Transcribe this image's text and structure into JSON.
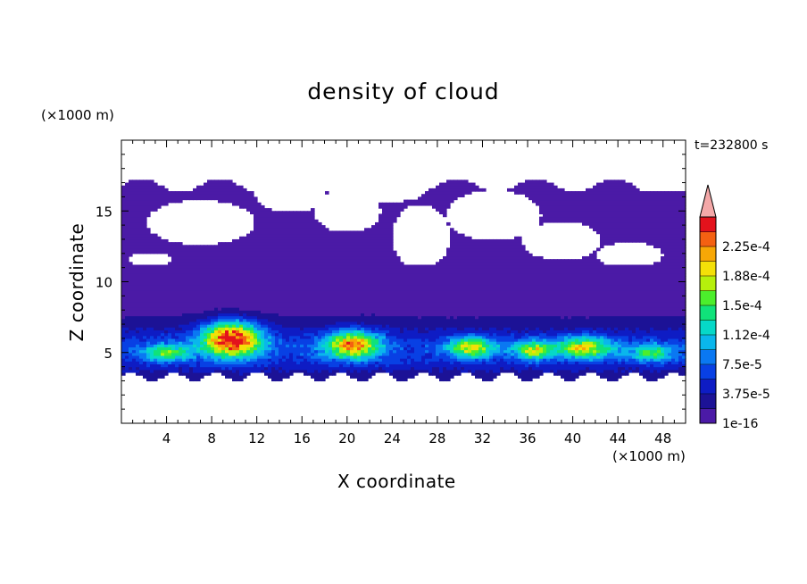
{
  "chart_data": {
    "type": "heatmap",
    "title": "density of cloud",
    "xlabel": "X coordinate",
    "ylabel": "Z coordinate",
    "x_unit": "(×1000 m)",
    "y_unit": "(×1000 m)",
    "time_label": "t=232800 s",
    "xlim": [
      0,
      50
    ],
    "ylim": [
      0,
      20
    ],
    "x_ticks": [
      4,
      8,
      12,
      16,
      20,
      24,
      28,
      32,
      36,
      40,
      44,
      48
    ],
    "y_ticks": [
      5,
      10,
      15
    ],
    "colorbar": {
      "tick_labels": [
        "1e-16",
        "3.75e-5",
        "7.5e-5",
        "1.12e-4",
        "1.5e-4",
        "1.88e-4",
        "2.25e-4"
      ],
      "levels": [
        1e-16,
        1.875e-05,
        3.75e-05,
        5.625e-05,
        7.5e-05,
        9.375e-05,
        0.0001125,
        0.00013125,
        0.00015,
        0.00016875,
        0.0001875,
        0.00020625,
        0.000225,
        0.00024375
      ],
      "colors": [
        "#4b1aa6",
        "#1c1296",
        "#0e1cc4",
        "#0840e4",
        "#0a78f2",
        "#0ab6ec",
        "#06d8c8",
        "#10e27a",
        "#4cee2c",
        "#b6f00c",
        "#f4e008",
        "#f7a706",
        "#f46112",
        "#e3121c"
      ],
      "extend_color": "#f4a8a8"
    },
    "cloud_field": {
      "cloud_base_km": 3.3,
      "main_top_km": 11.2,
      "upper_layer_km": [
        11.2,
        16.8
      ],
      "blobs": [
        {
          "x": 9.8,
          "z": 6.0,
          "rx": 3.2,
          "rz": 1.5,
          "value": 0.000225
        },
        {
          "x": 20.5,
          "z": 5.6,
          "rx": 3.0,
          "rz": 1.2,
          "value": 0.00017
        },
        {
          "x": 31.0,
          "z": 5.4,
          "rx": 2.5,
          "rz": 0.9,
          "value": 0.00014
        },
        {
          "x": 36.5,
          "z": 5.2,
          "rx": 2.0,
          "rz": 0.8,
          "value": 0.00013
        },
        {
          "x": 41.0,
          "z": 5.4,
          "rx": 3.0,
          "rz": 0.9,
          "value": 0.00014
        },
        {
          "x": 4.0,
          "z": 5.0,
          "rx": 2.5,
          "rz": 0.8,
          "value": 0.0001
        },
        {
          "x": 47.0,
          "z": 5.0,
          "rx": 2.5,
          "rz": 0.8,
          "value": 9e-05
        }
      ]
    }
  }
}
